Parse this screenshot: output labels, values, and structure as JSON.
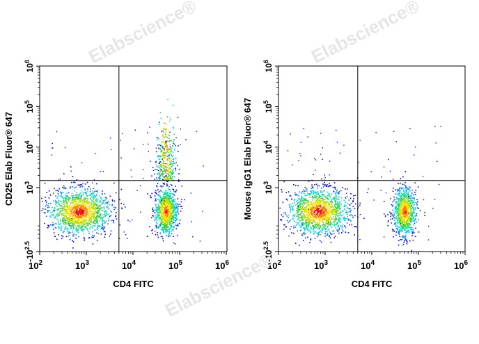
{
  "watermark": "Elabscience®",
  "chart_data": [
    {
      "type": "scatter",
      "subtype": "flow-cytometry-density-dot-plot",
      "xlabel": "CD4 FITC",
      "ylabel": "CD25 Elab Fluor® 647",
      "x_ticks": [
        "10^2",
        "10^3",
        "10^4",
        "10^5",
        "10^6"
      ],
      "y_ticks": [
        "-10^2.5",
        "10^3",
        "10^4",
        "10^5",
        "10^6"
      ],
      "xlim": [
        100,
        1000000
      ],
      "ylim": [
        "-10^2.5",
        "10^6"
      ],
      "quadrant_gate": {
        "x": 5000,
        "y": 1500
      },
      "populations": [
        {
          "name": "CD4- cells",
          "x_center": 700,
          "y_center": 300,
          "note": "large dense cluster"
        },
        {
          "name": "CD4+ CD25- cells",
          "x_center": 50000,
          "y_center": 300,
          "note": "dense cluster"
        },
        {
          "name": "CD4+ CD25+ cells",
          "x_center": 50000,
          "y_center": 5000,
          "note": "upward tail"
        }
      ]
    },
    {
      "type": "scatter",
      "subtype": "flow-cytometry-density-dot-plot",
      "xlabel": "CD4 FITC",
      "ylabel": "Mouse IgG1 Elab Fluor® 647",
      "x_ticks": [
        "10^2",
        "10^3",
        "10^4",
        "10^5",
        "10^6"
      ],
      "y_ticks": [
        "-10^2.5",
        "10^3",
        "10^4",
        "10^5",
        "10^6"
      ],
      "xlim": [
        100,
        1000000
      ],
      "ylim": [
        "-10^2.5",
        "10^6"
      ],
      "quadrant_gate": {
        "x": 5000,
        "y": 1500
      },
      "populations": [
        {
          "name": "CD4- cells",
          "x_center": 700,
          "y_center": 300,
          "note": "large dense cluster"
        },
        {
          "name": "CD4+ cells",
          "x_center": 50000,
          "y_center": 300,
          "note": "dense cluster, isotype control"
        }
      ]
    }
  ]
}
